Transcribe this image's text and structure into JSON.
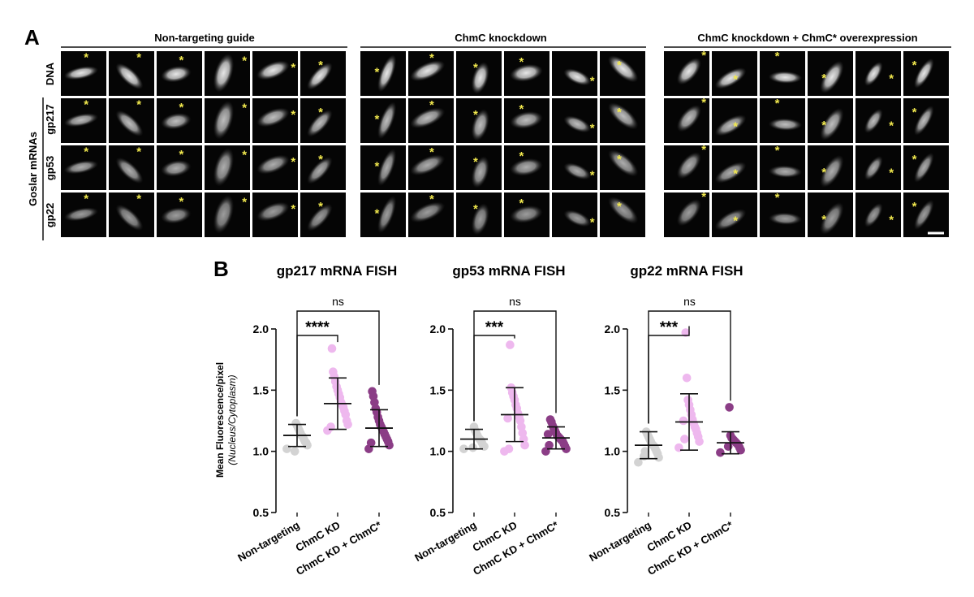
{
  "panel_a": {
    "letter": "A",
    "groups": [
      "Non-targeting guide",
      "ChmC knockdown",
      "ChmC knockdown + ChmC* overexpression"
    ],
    "rows": [
      "DNA",
      "gp217",
      "gp53",
      "gp22"
    ],
    "side_label": "Goslar mRNAs",
    "marker": "*"
  },
  "panel_b": {
    "letter": "B",
    "y_axis_title": "Mean Fluorescence/pixel",
    "y_axis_subtitle": "(Nucleus/Cytoplasm)"
  },
  "colors": {
    "non_targeting": "#d3d3d3",
    "chmc_kd": "#eeb8ee",
    "chmc_kd_rescue": "#8b3d86",
    "marker": "#f2e94e"
  },
  "chart_data": [
    {
      "type": "scatter",
      "title": "gp217 mRNA FISH",
      "categories": [
        "Non-targeting",
        "ChmC KD",
        "ChmC KD + ChmC*"
      ],
      "ylim": [
        0.5,
        2.0
      ],
      "yticks": [
        "0.5",
        "1.0",
        "1.5",
        "2.0"
      ],
      "means": [
        1.13,
        1.39,
        1.19
      ],
      "sd": [
        0.09,
        0.21,
        0.15
      ],
      "points": [
        [
          1.02,
          1.05,
          1.07,
          1.08,
          1.1,
          1.12,
          1.13,
          1.15,
          1.17,
          1.19,
          1.21,
          1.23,
          1.0
        ],
        [
          1.17,
          1.22,
          1.25,
          1.3,
          1.33,
          1.36,
          1.38,
          1.4,
          1.44,
          1.47,
          1.5,
          1.53,
          1.57,
          1.61,
          1.65,
          1.84,
          1.2
        ],
        [
          1.02,
          1.05,
          1.08,
          1.1,
          1.12,
          1.14,
          1.16,
          1.18,
          1.2,
          1.22,
          1.25,
          1.28,
          1.32,
          1.35,
          1.4,
          1.45,
          1.49,
          1.07
        ]
      ],
      "comparisons": [
        {
          "from": 0,
          "to": 1,
          "label": "****"
        },
        {
          "from": 0,
          "to": 2,
          "label": "ns"
        }
      ]
    },
    {
      "type": "scatter",
      "title": "gp53 mRNA FISH",
      "categories": [
        "Non-targeting",
        "ChmC KD",
        "ChmC KD + ChmC*"
      ],
      "ylim": [
        0.5,
        2.0
      ],
      "yticks": [
        "0.5",
        "1.0",
        "1.5",
        "2.0"
      ],
      "means": [
        1.1,
        1.3,
        1.11
      ],
      "sd": [
        0.08,
        0.22,
        0.09
      ],
      "points": [
        [
          1.02,
          1.04,
          1.05,
          1.07,
          1.09,
          1.1,
          1.11,
          1.13,
          1.15,
          1.17,
          1.2,
          1.03
        ],
        [
          1.0,
          1.05,
          1.1,
          1.15,
          1.2,
          1.25,
          1.28,
          1.31,
          1.35,
          1.38,
          1.42,
          1.45,
          1.48,
          1.52,
          1.87,
          1.02,
          1.27
        ],
        [
          1.0,
          1.02,
          1.04,
          1.06,
          1.08,
          1.09,
          1.1,
          1.11,
          1.12,
          1.13,
          1.15,
          1.17,
          1.19,
          1.21,
          1.24,
          1.26,
          1.05,
          1.14
        ]
      ],
      "comparisons": [
        {
          "from": 0,
          "to": 1,
          "label": "***"
        },
        {
          "from": 0,
          "to": 2,
          "label": "ns"
        }
      ]
    },
    {
      "type": "scatter",
      "title": "gp22 mRNA FISH",
      "categories": [
        "Non-targeting",
        "ChmC KD",
        "ChmC KD + ChmC*"
      ],
      "ylim": [
        0.5,
        2.0
      ],
      "yticks": [
        "0.5",
        "1.0",
        "1.5",
        "2.0"
      ],
      "means": [
        1.05,
        1.24,
        1.07
      ],
      "sd": [
        0.11,
        0.23,
        0.09
      ],
      "points": [
        [
          0.91,
          0.95,
          0.98,
          1.0,
          1.02,
          1.04,
          1.05,
          1.06,
          1.08,
          1.1,
          1.12,
          1.14,
          1.16,
          1.0,
          0.96
        ],
        [
          1.03,
          1.08,
          1.12,
          1.15,
          1.18,
          1.2,
          1.23,
          1.26,
          1.3,
          1.34,
          1.38,
          1.42,
          1.6,
          1.97,
          1.1,
          1.25
        ],
        [
          0.99,
          1.01,
          1.03,
          1.05,
          1.06,
          1.07,
          1.08,
          1.09,
          1.1,
          1.11,
          1.13,
          1.36,
          1.04
        ]
      ],
      "comparisons": [
        {
          "from": 0,
          "to": 1,
          "label": "***"
        },
        {
          "from": 0,
          "to": 2,
          "label": "ns"
        }
      ]
    }
  ]
}
